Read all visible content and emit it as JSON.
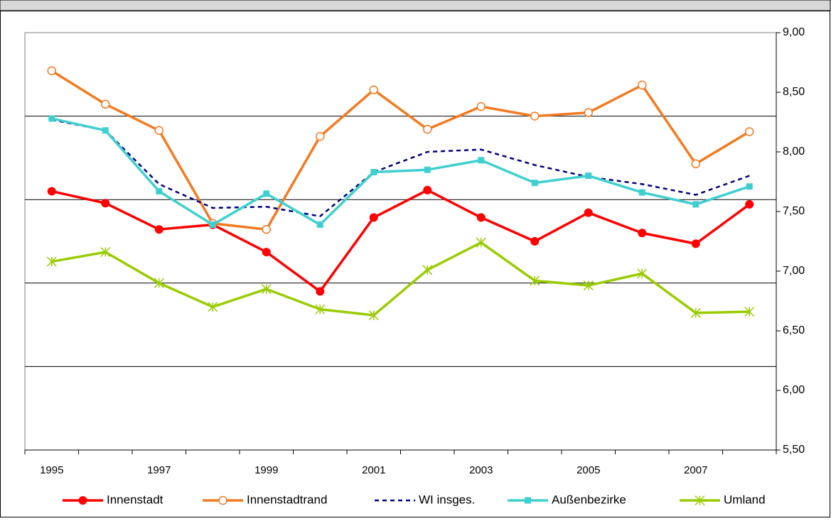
{
  "chart_data": {
    "type": "line",
    "categories": [
      "1995",
      null,
      "1997",
      null,
      "1999",
      null,
      "2001",
      null,
      "2003",
      null,
      "2005",
      null,
      "2007",
      null
    ],
    "series": [
      {
        "name": "Innenstadt",
        "color": "#ff0000",
        "marker": "circle",
        "dash": false,
        "values": [
          7.67,
          7.57,
          7.35,
          7.39,
          7.16,
          6.83,
          7.45,
          7.68,
          7.45,
          7.25,
          7.49,
          7.32,
          7.23,
          7.56
        ]
      },
      {
        "name": "Innenstadtrand",
        "color": "#f47a20",
        "marker": "circle-open",
        "dash": false,
        "values": [
          8.68,
          8.4,
          8.18,
          7.4,
          7.35,
          8.13,
          8.52,
          8.19,
          8.38,
          8.3,
          8.33,
          8.56,
          7.9,
          8.17
        ]
      },
      {
        "name": "WI  insges.",
        "color": "#000080",
        "marker": "none",
        "dash": true,
        "values": [
          8.27,
          8.18,
          7.73,
          7.53,
          7.54,
          7.46,
          7.83,
          8.0,
          8.02,
          7.89,
          7.79,
          7.73,
          7.64,
          7.8
        ]
      },
      {
        "name": "Außenbezirke",
        "color": "#40cfd0",
        "marker": "square",
        "dash": false,
        "values": [
          8.28,
          8.18,
          7.67,
          7.39,
          7.65,
          7.39,
          7.83,
          7.85,
          7.93,
          7.74,
          7.8,
          7.66,
          7.56,
          7.71
        ]
      },
      {
        "name": "Umland",
        "color": "#99cc00",
        "marker": "asterisk",
        "dash": false,
        "values": [
          7.08,
          7.16,
          6.9,
          6.7,
          6.85,
          6.68,
          6.63,
          7.01,
          7.24,
          6.92,
          6.88,
          6.98,
          6.65,
          6.66
        ]
      }
    ],
    "ylim": [
      5.5,
      9.0
    ],
    "yticks": [
      {
        "value": 5.5,
        "label": "5,50"
      },
      {
        "value": 6.0,
        "label": "6,00"
      },
      {
        "value": 6.5,
        "label": "6,50"
      },
      {
        "value": 7.0,
        "label": "7,00"
      },
      {
        "value": 7.5,
        "label": "7,50"
      },
      {
        "value": 8.0,
        "label": "8,00"
      },
      {
        "value": 8.5,
        "label": "8,50"
      },
      {
        "value": 9.0,
        "label": "9,00"
      }
    ],
    "y_axis_side": "right",
    "grid_lines": [
      6.2,
      6.9,
      7.6,
      8.3
    ],
    "legend": "bottom"
  }
}
